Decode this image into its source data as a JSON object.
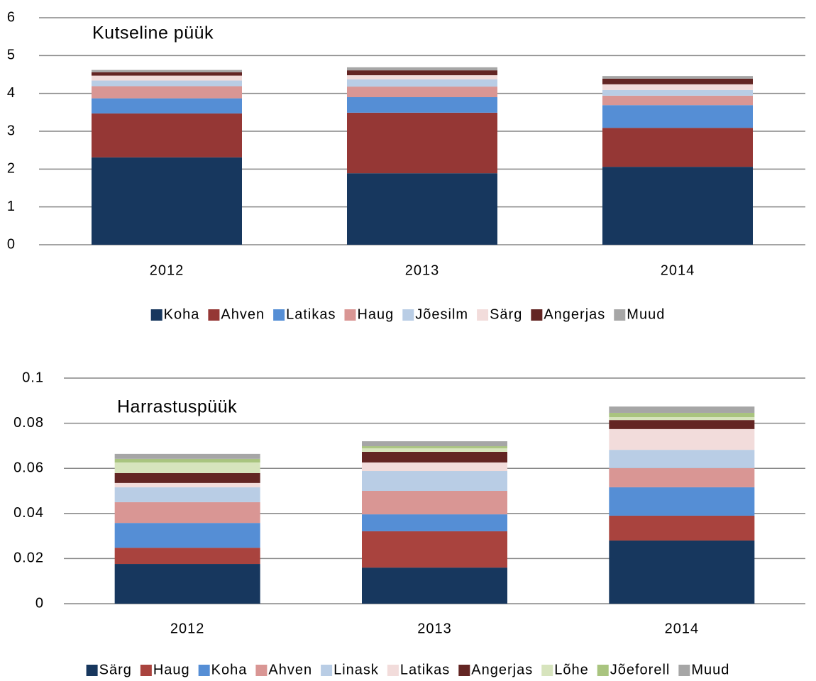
{
  "chart_data": [
    {
      "type": "bar",
      "stacked": true,
      "title": "Kutseline püük",
      "categories": [
        "2012",
        "2013",
        "2014"
      ],
      "series": [
        {
          "name": "Koha",
          "color": "#17375e",
          "values": [
            2.31,
            1.89,
            2.06
          ]
        },
        {
          "name": "Ahven",
          "color": "#953735",
          "values": [
            1.16,
            1.6,
            1.03
          ]
        },
        {
          "name": "Latikas",
          "color": "#558ed5",
          "values": [
            0.4,
            0.41,
            0.6
          ]
        },
        {
          "name": "Haug",
          "color": "#d99694",
          "values": [
            0.32,
            0.28,
            0.25
          ]
        },
        {
          "name": "Jõesilm",
          "color": "#b9cde5",
          "values": [
            0.15,
            0.19,
            0.15
          ]
        },
        {
          "name": "Särg",
          "color": "#f2dcdb",
          "values": [
            0.13,
            0.11,
            0.15
          ]
        },
        {
          "name": "Angerjas",
          "color": "#632523",
          "values": [
            0.09,
            0.13,
            0.15
          ]
        },
        {
          "name": "Muud",
          "color": "#a6a6a6",
          "values": [
            0.06,
            0.08,
            0.07
          ]
        }
      ],
      "ylim": [
        0,
        6
      ],
      "yticks": [
        0,
        1,
        2,
        3,
        4,
        5,
        6
      ],
      "grid": true,
      "legend": "bottom"
    },
    {
      "type": "bar",
      "stacked": true,
      "title": "Harrastuspüük",
      "categories": [
        "2012",
        "2013",
        "2014"
      ],
      "series": [
        {
          "name": "Särg",
          "color": "#17375e",
          "values": [
            0.0176,
            0.016,
            0.028
          ]
        },
        {
          "name": "Haug",
          "color": "#a9433e",
          "values": [
            0.0072,
            0.0161,
            0.011
          ]
        },
        {
          "name": "Koha",
          "color": "#558ed5",
          "values": [
            0.011,
            0.0075,
            0.0126
          ]
        },
        {
          "name": "Ahven",
          "color": "#d99694",
          "values": [
            0.0092,
            0.0104,
            0.0085
          ]
        },
        {
          "name": "Linask",
          "color": "#b9cde5",
          "values": [
            0.0066,
            0.0088,
            0.0081
          ]
        },
        {
          "name": "Latikas",
          "color": "#f2dcdb",
          "values": [
            0.0019,
            0.0038,
            0.0092
          ]
        },
        {
          "name": "Angerjas",
          "color": "#632523",
          "values": [
            0.0044,
            0.0047,
            0.004
          ]
        },
        {
          "name": "Lõhe",
          "color": "#d7e4bd",
          "values": [
            0.0047,
            0.0016,
            0.0013
          ]
        },
        {
          "name": "Jõeforell",
          "color": "#a9c47f",
          "values": [
            0.0016,
            0.0009,
            0.0019
          ]
        },
        {
          "name": "Muud",
          "color": "#a6a6a6",
          "values": [
            0.0022,
            0.0022,
            0.0028
          ]
        }
      ],
      "ylim": [
        0,
        0.1
      ],
      "yticks": [
        0,
        0.02,
        0.04,
        0.06,
        0.08,
        0.1
      ],
      "grid": true,
      "legend": "bottom"
    }
  ]
}
